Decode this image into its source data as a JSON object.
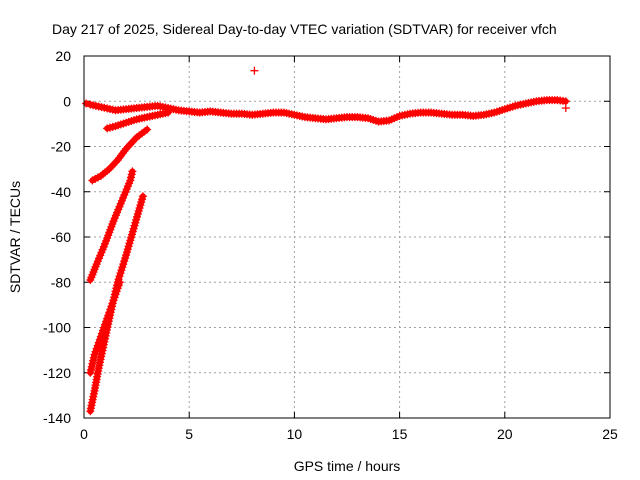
{
  "chart_data": {
    "type": "scatter",
    "title": "Day 217 of 2025, Sidereal Day-to-day VTEC variation (SDTVAR) for receiver vfch",
    "xlabel": "GPS time / hours",
    "ylabel": "SDTVAR / TECUs",
    "xlim": [
      0,
      25
    ],
    "ylim": [
      -140,
      20
    ],
    "xticks": [
      0,
      5,
      10,
      15,
      20,
      25
    ],
    "yticks": [
      -140,
      -120,
      -100,
      -80,
      -60,
      -40,
      -20,
      0,
      20
    ],
    "grid": true,
    "marker": "+",
    "color": "#ff0000",
    "series": [
      {
        "name": "main-trend",
        "points": [
          [
            0.1,
            -1
          ],
          [
            0.3,
            -1.5
          ],
          [
            1.5,
            -4
          ],
          [
            2.0,
            -3.5
          ],
          [
            2.5,
            -3
          ],
          [
            3.0,
            -2.5
          ],
          [
            3.5,
            -2
          ],
          [
            4.0,
            -3
          ],
          [
            4.5,
            -4
          ],
          [
            5.0,
            -4.5
          ],
          [
            5.5,
            -5
          ],
          [
            6.0,
            -4.5
          ],
          [
            6.5,
            -5
          ],
          [
            7.0,
            -5.5
          ],
          [
            7.5,
            -5.5
          ],
          [
            8.0,
            -6
          ],
          [
            8.5,
            -5.5
          ],
          [
            9.0,
            -5
          ],
          [
            9.5,
            -5
          ],
          [
            10.0,
            -6
          ],
          [
            10.5,
            -7
          ],
          [
            11.0,
            -7.5
          ],
          [
            11.5,
            -8
          ],
          [
            12.0,
            -7.5
          ],
          [
            12.5,
            -7
          ],
          [
            13.0,
            -7
          ],
          [
            13.5,
            -7.5
          ],
          [
            14.0,
            -9
          ],
          [
            14.5,
            -8.5
          ],
          [
            15.0,
            -6.5
          ],
          [
            15.5,
            -5.5
          ],
          [
            16.0,
            -5
          ],
          [
            16.5,
            -5
          ],
          [
            17.0,
            -5.5
          ],
          [
            17.5,
            -6
          ],
          [
            18.0,
            -6
          ],
          [
            18.5,
            -6.5
          ],
          [
            19.0,
            -6
          ],
          [
            19.5,
            -5
          ],
          [
            20.0,
            -3.5
          ],
          [
            20.5,
            -2
          ],
          [
            21.0,
            -1
          ],
          [
            21.5,
            0
          ],
          [
            22.0,
            0.5
          ],
          [
            22.5,
            0.5
          ],
          [
            22.9,
            0
          ]
        ]
      },
      {
        "name": "rising-arc-a",
        "points": [
          [
            1.1,
            -12
          ],
          [
            1.5,
            -11
          ],
          [
            2.0,
            -9.5
          ],
          [
            2.5,
            -8
          ],
          [
            3.0,
            -7
          ],
          [
            3.5,
            -6
          ],
          [
            4.0,
            -5
          ]
        ]
      },
      {
        "name": "rising-arc-b",
        "points": [
          [
            0.4,
            -35
          ],
          [
            0.8,
            -33
          ],
          [
            1.2,
            -30
          ],
          [
            1.6,
            -26
          ],
          [
            2.0,
            -21
          ],
          [
            2.5,
            -16
          ],
          [
            3.0,
            -12.5
          ]
        ]
      },
      {
        "name": "rising-arc-c",
        "points": [
          [
            0.3,
            -79
          ],
          [
            0.6,
            -72
          ],
          [
            1.0,
            -63
          ],
          [
            1.4,
            -53
          ],
          [
            1.8,
            -44
          ],
          [
            2.2,
            -35
          ],
          [
            2.3,
            -31
          ]
        ]
      },
      {
        "name": "rising-arc-d",
        "points": [
          [
            0.3,
            -137
          ],
          [
            0.5,
            -128
          ],
          [
            0.7,
            -118
          ],
          [
            1.0,
            -105
          ],
          [
            1.3,
            -92
          ],
          [
            1.6,
            -80
          ],
          [
            2.0,
            -68
          ],
          [
            2.4,
            -55
          ],
          [
            2.8,
            -42
          ]
        ]
      },
      {
        "name": "rising-arc-e",
        "points": [
          [
            0.3,
            -120
          ],
          [
            0.5,
            -112
          ],
          [
            0.8,
            -104
          ],
          [
            1.1,
            -96
          ],
          [
            1.4,
            -88
          ],
          [
            1.7,
            -80
          ]
        ]
      },
      {
        "name": "outliers",
        "points": [
          [
            8.1,
            13.5
          ],
          [
            22.9,
            -3
          ]
        ]
      }
    ]
  }
}
